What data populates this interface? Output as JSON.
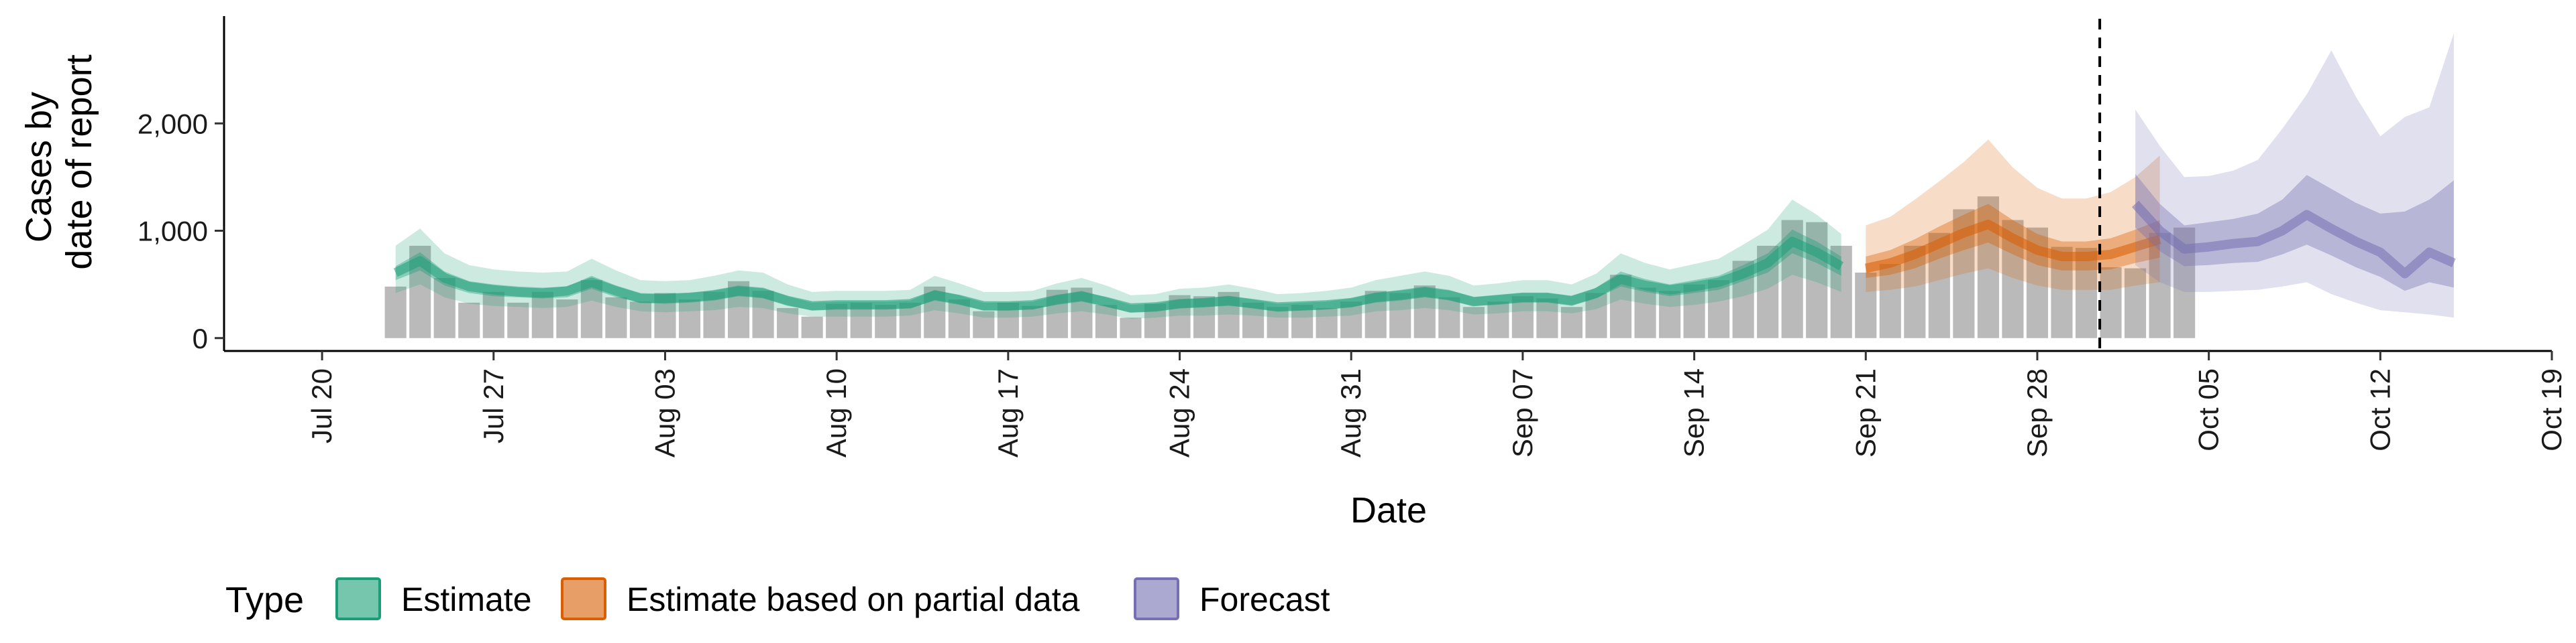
{
  "chart_data": {
    "type": "area",
    "xlabel": "Date",
    "ylabel": [
      "Cases by",
      "date of report"
    ],
    "x_range": [
      "2020-07-16",
      "2020-10-19"
    ],
    "y_range": [
      -120,
      3000
    ],
    "x_ticks": [
      {
        "date": "2020-07-20",
        "label": "Jul 20"
      },
      {
        "date": "2020-07-27",
        "label": "Jul 27"
      },
      {
        "date": "2020-08-03",
        "label": "Aug 03"
      },
      {
        "date": "2020-08-10",
        "label": "Aug 10"
      },
      {
        "date": "2020-08-17",
        "label": "Aug 17"
      },
      {
        "date": "2020-08-24",
        "label": "Aug 24"
      },
      {
        "date": "2020-08-31",
        "label": "Aug 31"
      },
      {
        "date": "2020-09-07",
        "label": "Sep 07"
      },
      {
        "date": "2020-09-14",
        "label": "Sep 14"
      },
      {
        "date": "2020-09-21",
        "label": "Sep 21"
      },
      {
        "date": "2020-09-28",
        "label": "Sep 28"
      },
      {
        "date": "2020-10-05",
        "label": "Oct 05"
      },
      {
        "date": "2020-10-12",
        "label": "Oct 12"
      },
      {
        "date": "2020-10-19",
        "label": "Oct 19"
      }
    ],
    "y_ticks": [
      {
        "value": 0,
        "label": "0"
      },
      {
        "value": 1000,
        "label": "1,000"
      },
      {
        "value": 2000,
        "label": "2,000"
      }
    ],
    "forecast_date": "2020-10-01",
    "legend": {
      "title": "Type",
      "position": "bottom",
      "items": [
        {
          "label": "Estimate",
          "color": "#1b9e77"
        },
        {
          "label": "Estimate based on partial data",
          "color": "#d95f02"
        },
        {
          "label": "Forecast",
          "color": "#7570b3"
        }
      ]
    },
    "bars": {
      "color": "#a6a6a6",
      "start_date": "2020-07-23",
      "values": [
        480,
        860,
        560,
        330,
        430,
        330,
        430,
        360,
        540,
        380,
        340,
        420,
        360,
        430,
        530,
        440,
        280,
        200,
        320,
        330,
        310,
        330,
        480,
        360,
        250,
        330,
        300,
        450,
        470,
        310,
        190,
        320,
        400,
        390,
        430,
        330,
        290,
        310,
        280,
        340,
        440,
        420,
        490,
        380,
        290,
        340,
        390,
        370,
        290,
        420,
        590,
        470,
        440,
        500,
        540,
        720,
        860,
        1100,
        1080,
        860,
        610,
        690,
        860,
        980,
        1200,
        1320,
        1100,
        1030,
        850,
        840,
        660,
        650,
        980,
        1030
      ]
    },
    "series": [
      {
        "name": "Estimate",
        "color": "#1b9e77",
        "start_date": "2020-07-23",
        "median": [
          610,
          720,
          560,
          480,
          450,
          430,
          420,
          440,
          520,
          440,
          370,
          370,
          380,
          400,
          440,
          420,
          350,
          300,
          310,
          310,
          310,
          320,
          400,
          360,
          300,
          300,
          310,
          360,
          390,
          340,
          280,
          290,
          320,
          330,
          350,
          320,
          290,
          300,
          310,
          330,
          380,
          400,
          430,
          400,
          340,
          360,
          380,
          380,
          350,
          420,
          550,
          490,
          450,
          480,
          520,
          600,
          700,
          900,
          800,
          670
        ],
        "q25_75": [
          [
            540,
            670
          ],
          [
            630,
            800
          ],
          [
            490,
            620
          ],
          [
            420,
            530
          ],
          [
            390,
            500
          ],
          [
            380,
            480
          ],
          [
            370,
            470
          ],
          [
            380,
            480
          ],
          [
            460,
            580
          ],
          [
            380,
            490
          ],
          [
            330,
            420
          ],
          [
            320,
            410
          ],
          [
            330,
            420
          ],
          [
            350,
            450
          ],
          [
            390,
            490
          ],
          [
            370,
            470
          ],
          [
            300,
            390
          ],
          [
            260,
            330
          ],
          [
            270,
            340
          ],
          [
            270,
            340
          ],
          [
            270,
            340
          ],
          [
            280,
            350
          ],
          [
            350,
            450
          ],
          [
            310,
            400
          ],
          [
            260,
            330
          ],
          [
            260,
            330
          ],
          [
            270,
            340
          ],
          [
            310,
            400
          ],
          [
            340,
            440
          ],
          [
            290,
            380
          ],
          [
            240,
            310
          ],
          [
            250,
            320
          ],
          [
            280,
            360
          ],
          [
            290,
            370
          ],
          [
            300,
            390
          ],
          [
            280,
            360
          ],
          [
            250,
            320
          ],
          [
            260,
            330
          ],
          [
            270,
            340
          ],
          [
            290,
            370
          ],
          [
            330,
            420
          ],
          [
            350,
            450
          ],
          [
            380,
            480
          ],
          [
            350,
            450
          ],
          [
            300,
            380
          ],
          [
            310,
            400
          ],
          [
            330,
            420
          ],
          [
            330,
            420
          ],
          [
            300,
            390
          ],
          [
            370,
            470
          ],
          [
            480,
            620
          ],
          [
            430,
            550
          ],
          [
            390,
            500
          ],
          [
            420,
            540
          ],
          [
            450,
            580
          ],
          [
            530,
            680
          ],
          [
            610,
            790
          ],
          [
            790,
            1010
          ],
          [
            700,
            900
          ],
          [
            580,
            760
          ]
        ],
        "q5_95": [
          [
            420,
            860
          ],
          [
            500,
            1020
          ],
          [
            380,
            790
          ],
          [
            320,
            680
          ],
          [
            300,
            640
          ],
          [
            290,
            620
          ],
          [
            280,
            610
          ],
          [
            290,
            620
          ],
          [
            350,
            740
          ],
          [
            290,
            630
          ],
          [
            250,
            540
          ],
          [
            240,
            530
          ],
          [
            250,
            540
          ],
          [
            260,
            580
          ],
          [
            290,
            630
          ],
          [
            280,
            610
          ],
          [
            230,
            500
          ],
          [
            200,
            430
          ],
          [
            200,
            440
          ],
          [
            200,
            440
          ],
          [
            200,
            440
          ],
          [
            210,
            450
          ],
          [
            260,
            580
          ],
          [
            230,
            510
          ],
          [
            190,
            430
          ],
          [
            190,
            430
          ],
          [
            200,
            440
          ],
          [
            230,
            510
          ],
          [
            250,
            560
          ],
          [
            220,
            490
          ],
          [
            180,
            400
          ],
          [
            190,
            410
          ],
          [
            210,
            460
          ],
          [
            210,
            470
          ],
          [
            220,
            500
          ],
          [
            210,
            460
          ],
          [
            190,
            410
          ],
          [
            190,
            420
          ],
          [
            200,
            440
          ],
          [
            210,
            470
          ],
          [
            250,
            540
          ],
          [
            260,
            580
          ],
          [
            280,
            620
          ],
          [
            260,
            580
          ],
          [
            220,
            490
          ],
          [
            230,
            510
          ],
          [
            250,
            540
          ],
          [
            250,
            540
          ],
          [
            230,
            500
          ],
          [
            270,
            600
          ],
          [
            360,
            790
          ],
          [
            320,
            700
          ],
          [
            290,
            640
          ],
          [
            310,
            690
          ],
          [
            340,
            740
          ],
          [
            390,
            870
          ],
          [
            460,
            1010
          ],
          [
            590,
            1290
          ],
          [
            520,
            1150
          ],
          [
            430,
            970
          ]
        ]
      },
      {
        "name": "Estimate based on partial data",
        "color": "#d95f02",
        "start_date": "2020-09-21",
        "median": [
          650,
          700,
          780,
          880,
          980,
          1060,
          930,
          820,
          760,
          760,
          780,
          850,
          920
        ],
        "q25_75": [
          [
            560,
            760
          ],
          [
            590,
            820
          ],
          [
            650,
            920
          ],
          [
            740,
            1040
          ],
          [
            820,
            1150
          ],
          [
            890,
            1250
          ],
          [
            780,
            1100
          ],
          [
            680,
            970
          ],
          [
            630,
            900
          ],
          [
            630,
            900
          ],
          [
            640,
            930
          ],
          [
            700,
            1010
          ],
          [
            750,
            1100
          ]
        ],
        "q5_95": [
          [
            430,
            1050
          ],
          [
            450,
            1130
          ],
          [
            480,
            1290
          ],
          [
            540,
            1460
          ],
          [
            600,
            1640
          ],
          [
            650,
            1850
          ],
          [
            560,
            1590
          ],
          [
            490,
            1400
          ],
          [
            450,
            1300
          ],
          [
            450,
            1300
          ],
          [
            450,
            1360
          ],
          [
            490,
            1500
          ],
          [
            520,
            1700
          ]
        ]
      },
      {
        "name": "Forecast",
        "color": "#7570b3",
        "start_date": "2020-10-02",
        "median": [
          1250,
          1000,
          830,
          850,
          880,
          900,
          1000,
          1150,
          1020,
          900,
          800,
          600,
          800,
          700
        ],
        "q25_75": [
          [
            1030,
            1530
          ],
          [
            810,
            1250
          ],
          [
            670,
            1050
          ],
          [
            680,
            1080
          ],
          [
            700,
            1110
          ],
          [
            710,
            1160
          ],
          [
            780,
            1290
          ],
          [
            870,
            1520
          ],
          [
            770,
            1390
          ],
          [
            660,
            1260
          ],
          [
            570,
            1160
          ],
          [
            440,
            1180
          ],
          [
            520,
            1290
          ],
          [
            470,
            1470
          ]
        ],
        "q5_95": [
          [
            680,
            2130
          ],
          [
            520,
            1790
          ],
          [
            430,
            1500
          ],
          [
            430,
            1510
          ],
          [
            440,
            1560
          ],
          [
            450,
            1660
          ],
          [
            480,
            1950
          ],
          [
            520,
            2270
          ],
          [
            410,
            2680
          ],
          [
            330,
            2250
          ],
          [
            260,
            1880
          ],
          [
            240,
            2060
          ],
          [
            220,
            2150
          ],
          [
            190,
            2840
          ]
        ]
      }
    ]
  }
}
